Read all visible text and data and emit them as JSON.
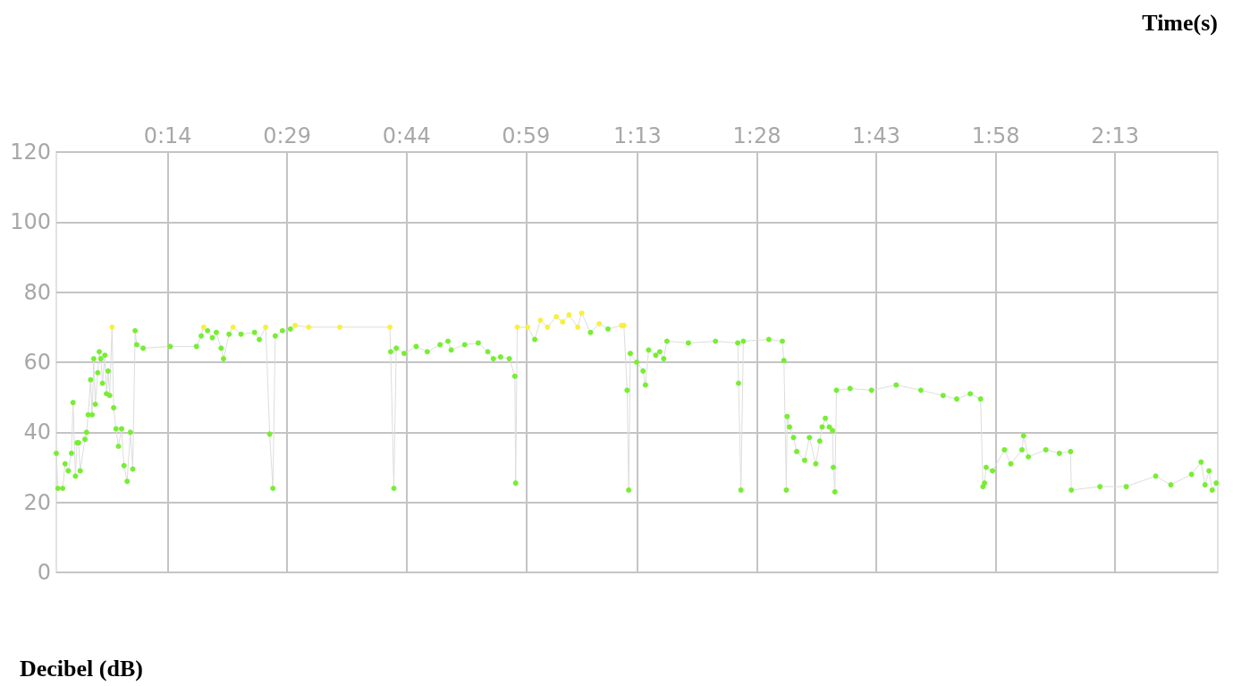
{
  "chart_data": {
    "type": "line",
    "xlabel": "Time(s)",
    "ylabel": "Decibel (dB)",
    "x": [
      0,
      0.2,
      0.8,
      1.1,
      1.5,
      1.9,
      2.1,
      2.4,
      2.6,
      2.8,
      3.0,
      3.6,
      3.8,
      4.0,
      4.3,
      4.5,
      4.7,
      4.9,
      5.2,
      5.4,
      5.6,
      5.8,
      6.1,
      6.3,
      6.5,
      6.7,
      7.0,
      7.2,
      7.5,
      7.8,
      8.2,
      8.5,
      8.9,
      9.3,
      9.6,
      9.9,
      10.1,
      10.9,
      14.3,
      17.6,
      18.2,
      18.5,
      19.0,
      19.6,
      20.1,
      20.7,
      21.0,
      21.7,
      22.2,
      23.2,
      24.9,
      25.5,
      26.3,
      26.8,
      27.2,
      27.5,
      28.4,
      29.4,
      30.0,
      31.7,
      35.6,
      41.9,
      42.0,
      42.4,
      42.7,
      43.7,
      45.2,
      46.6,
      48.2,
      49.2,
      49.6,
      51.3,
      53.0,
      54.2,
      54.9,
      55.8,
      56.9,
      57.6,
      57.7,
      57.9,
      59.2,
      60.1,
      60.8,
      61.7,
      62.8,
      63.6,
      64.4,
      65.5,
      66.0,
      67.1,
      68.2,
      69.3,
      71.0,
      71.3,
      71.7,
      71.9,
      72.1,
      72.9,
      73.7,
      74.0,
      74.4,
      75.3,
      75.8,
      76.3,
      76.7,
      79.4,
      82.8,
      85.6,
      85.7,
      86.0,
      86.3,
      89.5,
      91.2,
      91.4,
      91.7,
      91.8,
      92.1,
      92.6,
      93.0,
      94.0,
      94.6,
      95.4,
      95.9,
      96.2,
      96.6,
      97.1,
      97.5,
      97.6,
      97.8,
      98.0,
      99.7,
      102.4,
      105.5,
      108.6,
      111.4,
      113.1,
      114.8,
      116.1,
      116.4,
      116.6,
      116.8,
      117.6,
      119.1,
      119.9,
      121.3,
      121.5,
      122.1,
      124.3,
      126.0,
      127.4,
      127.5,
      131.1,
      134.4,
      138.1,
      140.0,
      142.6,
      143.8,
      144.3,
      144.8,
      145.2,
      145.7
    ],
    "series": [
      {
        "color": "#dddddd",
        "values": [
          34,
          24,
          24,
          31,
          29,
          34,
          48.5,
          27.5,
          37,
          37,
          29,
          38,
          40,
          45,
          55,
          45,
          61,
          48,
          57,
          63,
          61,
          54,
          62,
          51,
          57.5,
          50.5,
          70,
          47,
          41,
          36,
          41,
          30.5,
          26,
          40,
          29.5,
          69,
          65,
          64,
          64.5,
          64.5,
          67.5,
          70,
          69,
          67,
          68.5,
          64,
          61,
          68,
          70,
          68,
          68.5,
          66.5,
          70,
          39.5,
          24,
          67.5,
          69,
          69.5,
          70.5,
          70,
          70,
          70,
          63,
          24,
          64,
          62.5,
          64.5,
          63,
          65,
          66,
          63.5,
          65,
          65.5,
          63,
          61,
          61.5,
          61,
          56,
          25.5,
          70,
          70,
          66.5,
          72,
          70,
          73,
          71.5,
          73.5,
          70,
          74,
          68.5,
          71,
          69.5,
          70.5,
          70.5,
          52,
          23.5,
          62.5,
          60,
          57.5,
          53.5,
          63.5,
          62,
          63,
          61,
          66,
          65.5,
          66,
          65.5,
          54,
          23.5,
          66,
          66.5,
          66,
          60.5,
          23.5,
          44.5,
          41.5,
          38.5,
          34.5,
          32,
          38.5,
          31,
          37.5,
          41.5,
          44,
          41.5,
          40.5,
          30,
          23,
          52,
          52.5,
          52,
          53.5,
          52,
          50.5,
          49.5,
          51,
          49.5,
          24.5,
          25.5,
          30,
          29,
          35,
          31,
          35,
          39,
          33,
          35,
          34,
          34.5,
          23.5,
          24.5,
          24.5,
          27.5,
          25,
          28,
          31.5,
          25,
          29,
          23.5,
          25.5
        ],
        "colors": [
          "#77ee33",
          "#77ee33",
          "#77ee33",
          "#77ee33",
          "#77ee33",
          "#77ee33",
          "#77ee33",
          "#77ee33",
          "#77ee33",
          "#77ee33",
          "#77ee33",
          "#77ee33",
          "#77ee33",
          "#77ee33",
          "#77ee33",
          "#77ee33",
          "#77ee33",
          "#77ee33",
          "#77ee33",
          "#77ee33",
          "#77ee33",
          "#77ee33",
          "#77ee33",
          "#77ee33",
          "#77ee33",
          "#77ee33",
          "#f8f040",
          "#77ee33",
          "#77ee33",
          "#77ee33",
          "#77ee33",
          "#77ee33",
          "#77ee33",
          "#77ee33",
          "#77ee33",
          "#77ee33",
          "#77ee33",
          "#77ee33",
          "#77ee33",
          "#77ee33",
          "#77ee33",
          "#f8f040",
          "#77ee33",
          "#77ee33",
          "#77ee33",
          "#77ee33",
          "#77ee33",
          "#77ee33",
          "#f8f040",
          "#77ee33",
          "#77ee33",
          "#77ee33",
          "#f8f040",
          "#77ee33",
          "#77ee33",
          "#77ee33",
          "#77ee33",
          "#77ee33",
          "#f8f040",
          "#f8f040",
          "#f8f040",
          "#f8f040",
          "#77ee33",
          "#77ee33",
          "#77ee33",
          "#77ee33",
          "#77ee33",
          "#77ee33",
          "#77ee33",
          "#77ee33",
          "#77ee33",
          "#77ee33",
          "#77ee33",
          "#77ee33",
          "#77ee33",
          "#77ee33",
          "#77ee33",
          "#77ee33",
          "#77ee33",
          "#f8f040",
          "#f8f040",
          "#77ee33",
          "#f8f040",
          "#f8f040",
          "#f8f040",
          "#f8f040",
          "#f8f040",
          "#f8f040",
          "#f8f040",
          "#77ee33",
          "#f8f040",
          "#77ee33",
          "#f8f040",
          "#f8f040",
          "#77ee33",
          "#77ee33",
          "#77ee33",
          "#77ee33",
          "#77ee33",
          "#77ee33",
          "#77ee33",
          "#77ee33",
          "#77ee33",
          "#77ee33",
          "#77ee33",
          "#77ee33",
          "#77ee33",
          "#77ee33",
          "#77ee33",
          "#77ee33",
          "#77ee33",
          "#77ee33",
          "#77ee33",
          "#77ee33",
          "#77ee33",
          "#77ee33",
          "#77ee33",
          "#77ee33",
          "#77ee33",
          "#77ee33",
          "#77ee33",
          "#77ee33",
          "#77ee33",
          "#77ee33",
          "#77ee33",
          "#77ee33",
          "#77ee33",
          "#77ee33",
          "#77ee33",
          "#77ee33",
          "#77ee33",
          "#77ee33",
          "#77ee33",
          "#77ee33",
          "#77ee33",
          "#77ee33",
          "#77ee33",
          "#77ee33",
          "#77ee33",
          "#77ee33",
          "#77ee33",
          "#77ee33",
          "#77ee33",
          "#77ee33",
          "#77ee33",
          "#77ee33",
          "#77ee33",
          "#77ee33",
          "#77ee33",
          "#77ee33",
          "#77ee33",
          "#77ee33",
          "#77ee33",
          "#77ee33",
          "#77ee33",
          "#77ee33",
          "#77ee33",
          "#77ee33",
          "#77ee33",
          "#77ee33",
          "#77ee33"
        ]
      }
    ],
    "xlim": [
      0,
      145.9
    ],
    "xticks": [
      {
        "value": 14,
        "label": "0:14"
      },
      {
        "value": 29,
        "label": "0:29"
      },
      {
        "value": 44,
        "label": "0:44"
      },
      {
        "value": 59,
        "label": "0:59"
      },
      {
        "value": 73,
        "label": "1:13"
      },
      {
        "value": 88,
        "label": "1:28"
      },
      {
        "value": 103,
        "label": "1:43"
      },
      {
        "value": 118,
        "label": "1:58"
      },
      {
        "value": 133,
        "label": "2:13"
      }
    ],
    "ylim": [
      0,
      120
    ],
    "yticks": [
      0,
      20,
      40,
      60,
      80,
      100,
      120
    ],
    "grid": true,
    "marker": "circle",
    "line_style": "solid"
  }
}
